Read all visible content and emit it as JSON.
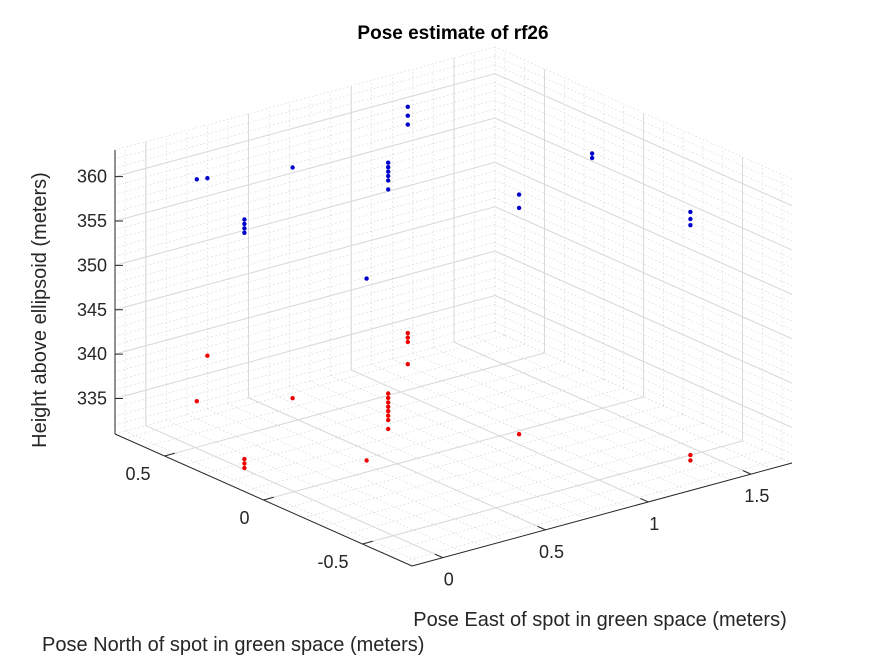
{
  "chart_data": {
    "type": "scatter3d",
    "title": "Pose estimate of rf26",
    "xlabel": "Pose East of spot in green space (meters)",
    "ylabel": "Pose North of spot in green space (meters)",
    "zlabel": "Height above ellipsoid (meters)",
    "xlim": [
      -0.15,
      1.7
    ],
    "ylim": [
      -0.75,
      0.75
    ],
    "zlim": [
      331,
      363
    ],
    "xticks": [
      0,
      0.5,
      1,
      1.5
    ],
    "xtick_labels": [
      "0",
      "0.5",
      "1",
      "1.5"
    ],
    "yticks": [
      -0.5,
      0,
      0.5
    ],
    "ytick_labels": [
      "-0.5",
      "0",
      "0.5"
    ],
    "zticks": [
      335,
      340,
      345,
      350,
      355,
      360
    ],
    "ztick_labels": [
      "335",
      "340",
      "345",
      "350",
      "355",
      "360"
    ],
    "grid": "on (major and minor)",
    "series": [
      {
        "color": "#0000cc",
        "points": [
          {
            "x": 0.2,
            "y": 0.7,
            "z": 358
          },
          {
            "x": 0.57,
            "y": 0.6,
            "z": 358
          },
          {
            "x": 1.15,
            "y": 0.62,
            "z": 360
          },
          {
            "x": 1.15,
            "y": 0.62,
            "z": 359
          },
          {
            "x": 1.15,
            "y": 0.62,
            "z": 361
          },
          {
            "x": 1.45,
            "y": 0.0,
            "z": 359.5
          },
          {
            "x": 1.45,
            "y": 0.0,
            "z": 360.0
          },
          {
            "x": 0.3,
            "y": 0.75,
            "z": 357
          },
          {
            "x": 0.65,
            "y": 0.2,
            "z": 359
          },
          {
            "x": 0.65,
            "y": 0.2,
            "z": 360
          },
          {
            "x": 0.65,
            "y": 0.2,
            "z": 360.5
          },
          {
            "x": 0.65,
            "y": 0.2,
            "z": 361
          },
          {
            "x": 0.65,
            "y": 0.2,
            "z": 361.5
          },
          {
            "x": 0.65,
            "y": 0.2,
            "z": 362
          },
          {
            "x": 0.95,
            "y": -0.15,
            "z": 360
          },
          {
            "x": 0.95,
            "y": -0.15,
            "z": 358.5
          },
          {
            "x": 1.35,
            "y": -0.6,
            "z": 360
          },
          {
            "x": 1.35,
            "y": -0.6,
            "z": 359.2
          },
          {
            "x": 1.35,
            "y": -0.6,
            "z": 358.5
          },
          {
            "x": -0.05,
            "y": 0.2,
            "z": 360
          },
          {
            "x": -0.05,
            "y": 0.2,
            "z": 359.5
          },
          {
            "x": -0.05,
            "y": 0.2,
            "z": 359
          },
          {
            "x": -0.05,
            "y": 0.2,
            "z": 358.5
          },
          {
            "x": 0.4,
            "y": 0.05,
            "z": 352
          }
        ]
      },
      {
        "color": "#ee0000",
        "points": [
          {
            "x": 0.2,
            "y": 0.7,
            "z": 333
          },
          {
            "x": 0.3,
            "y": 0.75,
            "z": 337
          },
          {
            "x": 0.57,
            "y": 0.6,
            "z": 332
          },
          {
            "x": 1.15,
            "y": 0.62,
            "z": 334.5
          },
          {
            "x": 1.15,
            "y": 0.62,
            "z": 335
          },
          {
            "x": 1.15,
            "y": 0.62,
            "z": 335.5
          },
          {
            "x": 1.15,
            "y": 0.62,
            "z": 332
          },
          {
            "x": 0.65,
            "y": 0.2,
            "z": 332
          },
          {
            "x": 0.65,
            "y": 0.2,
            "z": 333
          },
          {
            "x": 0.65,
            "y": 0.2,
            "z": 333.5
          },
          {
            "x": 0.65,
            "y": 0.2,
            "z": 334
          },
          {
            "x": 0.65,
            "y": 0.2,
            "z": 334.5
          },
          {
            "x": 0.65,
            "y": 0.2,
            "z": 335
          },
          {
            "x": 0.65,
            "y": 0.2,
            "z": 335.5
          },
          {
            "x": 0.65,
            "y": 0.2,
            "z": 336
          },
          {
            "x": 0.95,
            "y": -0.15,
            "z": 333
          },
          {
            "x": 1.35,
            "y": -0.6,
            "z": 332
          },
          {
            "x": 1.35,
            "y": -0.6,
            "z": 332.6
          },
          {
            "x": -0.05,
            "y": 0.2,
            "z": 332
          },
          {
            "x": -0.05,
            "y": 0.2,
            "z": 332.5
          },
          {
            "x": -0.05,
            "y": 0.2,
            "z": 333
          },
          {
            "x": 0.4,
            "y": 0.05,
            "z": 331.5
          }
        ]
      }
    ]
  }
}
